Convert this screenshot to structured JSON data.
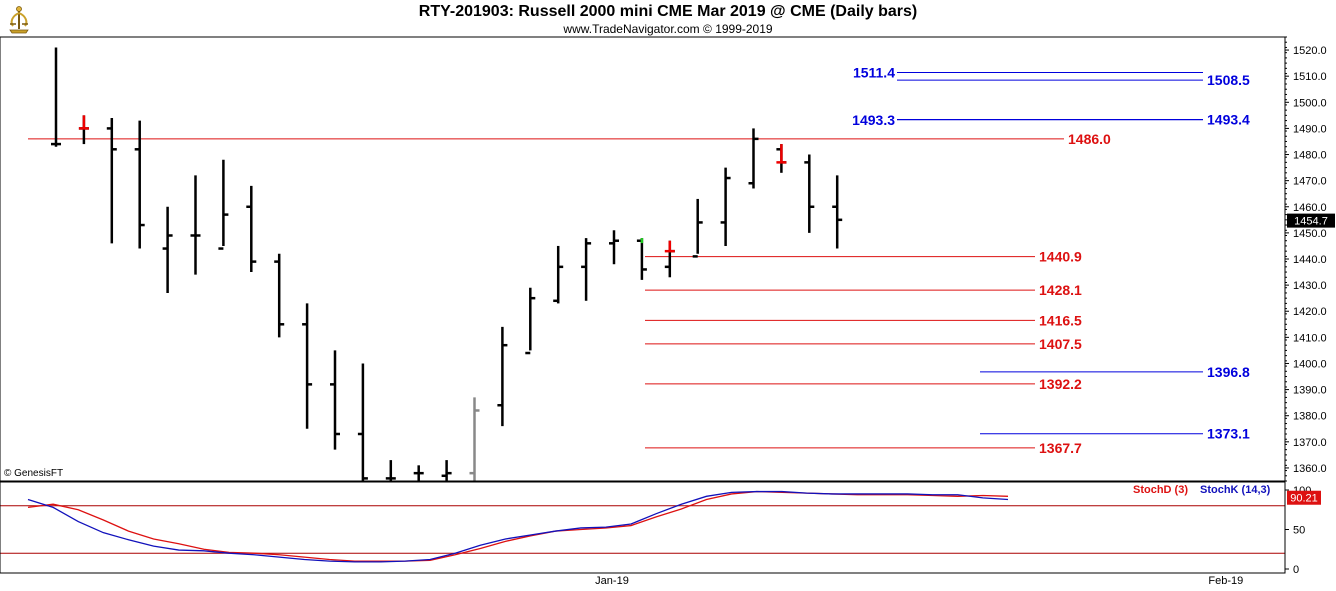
{
  "header": {
    "title": "RTY-201903:  Russell 2000 mini CME Mar 2019 @ CME  (Daily bars)",
    "subtitle": "www.TradeNavigator.com © 1999-2019",
    "logo_icon": "trade-navigator-logo-icon"
  },
  "footer": {
    "copyright": "© GenesisFT"
  },
  "colors": {
    "bar": "#000000",
    "up_tick": "#22cc22",
    "down_tick": "#ee0000",
    "gray_bar": "#888888",
    "red_level": "#dd1111",
    "blue_level": "#0000dd",
    "stoch_d": "#dd1111",
    "stoch_k": "#1111bb",
    "price_tag_bg": "#000000",
    "stoch_tag_bg": "#dd1111"
  },
  "chart_data": [
    {
      "type": "ohlc",
      "title": "RTY-201903:  Russell 2000 mini CME Mar 2019 @ CME  (Daily bars)",
      "ylim": [
        1355,
        1525
      ],
      "y_ticks": [
        1360,
        1370,
        1380,
        1390,
        1400,
        1410,
        1420,
        1430,
        1440,
        1450,
        1460,
        1470,
        1480,
        1490,
        1500,
        1510,
        1520
      ],
      "x_labels": [
        {
          "label": "Jan-19",
          "bar": 20
        },
        {
          "label": "Feb-19",
          "bar": 42
        }
      ],
      "last_price": "1454.7",
      "bars": [
        {
          "o": 1484,
          "h": 1521,
          "l": 1483,
          "c": 1484
        },
        {
          "o": 1490,
          "h": 1495,
          "l": 1484,
          "c": 1490,
          "flag": "red"
        },
        {
          "o": 1490,
          "h": 1494,
          "l": 1446,
          "c": 1482
        },
        {
          "o": 1482,
          "h": 1493,
          "l": 1444,
          "c": 1453
        },
        {
          "o": 1444,
          "h": 1460,
          "l": 1427,
          "c": 1449
        },
        {
          "o": 1449,
          "h": 1472,
          "l": 1434,
          "c": 1449
        },
        {
          "o": 1444,
          "h": 1478,
          "l": 1445,
          "c": 1457
        },
        {
          "o": 1460,
          "h": 1468,
          "l": 1435,
          "c": 1439
        },
        {
          "o": 1439,
          "h": 1442,
          "l": 1410,
          "c": 1415
        },
        {
          "o": 1415,
          "h": 1423,
          "l": 1375,
          "c": 1392
        },
        {
          "o": 1392,
          "h": 1405,
          "l": 1367,
          "c": 1373
        },
        {
          "o": 1373,
          "h": 1400,
          "l": 1355,
          "c": 1356
        },
        {
          "o": 1356,
          "h": 1363,
          "l": 1355,
          "c": 1356
        },
        {
          "o": 1358,
          "h": 1361,
          "l": 1355,
          "c": 1358
        },
        {
          "o": 1357,
          "h": 1363,
          "l": 1355,
          "c": 1358
        },
        {
          "o": 1358,
          "h": 1387,
          "l": 1355,
          "c": 1382,
          "flag": "gray"
        },
        {
          "o": 1384,
          "h": 1414,
          "l": 1376,
          "c": 1407
        },
        {
          "o": 1404,
          "h": 1429,
          "l": 1405,
          "c": 1425
        },
        {
          "o": 1424,
          "h": 1445,
          "l": 1423,
          "c": 1437
        },
        {
          "o": 1437,
          "h": 1448,
          "l": 1424,
          "c": 1446
        },
        {
          "o": 1446,
          "h": 1451,
          "l": 1438,
          "c": 1447
        },
        {
          "o": 1447,
          "h": 1448,
          "l": 1432,
          "c": 1436,
          "flag": "green"
        },
        {
          "o": 1437,
          "h": 1447,
          "l": 1433,
          "c": 1443,
          "flag": "red"
        },
        {
          "o": 1441,
          "h": 1463,
          "l": 1442,
          "c": 1454
        },
        {
          "o": 1454,
          "h": 1475,
          "l": 1445,
          "c": 1471
        },
        {
          "o": 1469,
          "h": 1490,
          "l": 1467,
          "c": 1486
        },
        {
          "o": 1482,
          "h": 1484,
          "l": 1473,
          "c": 1477,
          "flag": "red"
        },
        {
          "o": 1477,
          "h": 1480,
          "l": 1450,
          "c": 1460
        },
        {
          "o": 1460,
          "h": 1472,
          "l": 1444,
          "c": 1455
        }
      ],
      "levels": [
        {
          "value": 1486.0,
          "label": "1486.0",
          "color": "red",
          "side": "right"
        },
        {
          "value": 1440.9,
          "label": "1440.9",
          "color": "red",
          "side": "right"
        },
        {
          "value": 1428.1,
          "label": "1428.1",
          "color": "red",
          "side": "right"
        },
        {
          "value": 1416.5,
          "label": "1416.5",
          "color": "red",
          "side": "right"
        },
        {
          "value": 1407.5,
          "label": "1407.5",
          "color": "red",
          "side": "right"
        },
        {
          "value": 1392.2,
          "label": "1392.2",
          "color": "red",
          "side": "right"
        },
        {
          "value": 1367.7,
          "label": "1367.7",
          "color": "red",
          "side": "right"
        },
        {
          "value": 1511.4,
          "label": "1511.4",
          "color": "blue",
          "side": "left"
        },
        {
          "value": 1508.5,
          "label": "1508.5",
          "color": "blue",
          "side": "right"
        },
        {
          "value": 1493.3,
          "label": "1493.3",
          "color": "blue",
          "side": "left"
        },
        {
          "value": 1493.4,
          "label": "1493.4",
          "color": "blue",
          "side": "right"
        },
        {
          "value": 1396.8,
          "label": "1396.8",
          "color": "blue",
          "side": "right"
        },
        {
          "value": 1373.1,
          "label": "1373.1",
          "color": "blue",
          "side": "right"
        }
      ]
    },
    {
      "type": "line",
      "ylim": [
        0,
        100
      ],
      "y_ticks": [
        0,
        50,
        100
      ],
      "reference_line": 80,
      "last_value": "90.21",
      "series": [
        {
          "name": "StochD (3)",
          "color": "red",
          "values": [
            78,
            82,
            75,
            62,
            48,
            38,
            32,
            25,
            21,
            20,
            18,
            15,
            12,
            10,
            10,
            10,
            11,
            18,
            26,
            35,
            42,
            48,
            50,
            52,
            55,
            66,
            76,
            88,
            95,
            98,
            97,
            96,
            95,
            94,
            94,
            94,
            93,
            92,
            93,
            92
          ]
        },
        {
          "name": "StochK (14,3)",
          "color": "blue",
          "values": [
            88,
            78,
            60,
            46,
            37,
            29,
            24,
            23,
            20,
            18,
            15,
            12,
            10,
            9,
            9,
            10,
            12,
            20,
            30,
            38,
            43,
            48,
            52,
            53,
            57,
            70,
            82,
            92,
            97,
            98,
            98,
            96,
            95,
            95,
            95,
            95,
            94,
            94,
            90,
            88
          ]
        }
      ]
    }
  ]
}
